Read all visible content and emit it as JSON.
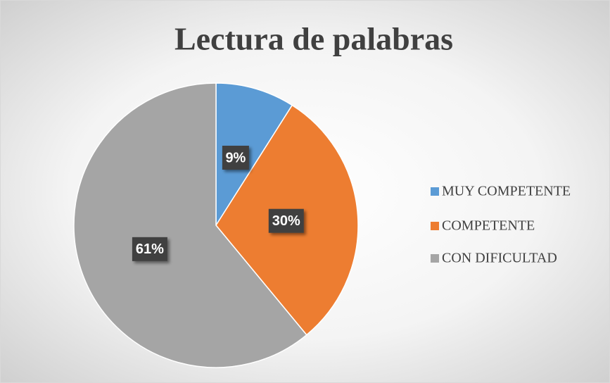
{
  "chart_data": {
    "type": "pie",
    "title": "Lectura de palabras",
    "categories": [
      "MUY COMPETENTE",
      "COMPETENTE",
      "CON DIFICULTAD"
    ],
    "values": [
      9,
      30,
      61
    ],
    "value_labels": [
      "9%",
      "30%",
      "61%"
    ],
    "colors": [
      "#5b9bd5",
      "#ed7d31",
      "#a5a5a5"
    ],
    "legend": "right"
  }
}
